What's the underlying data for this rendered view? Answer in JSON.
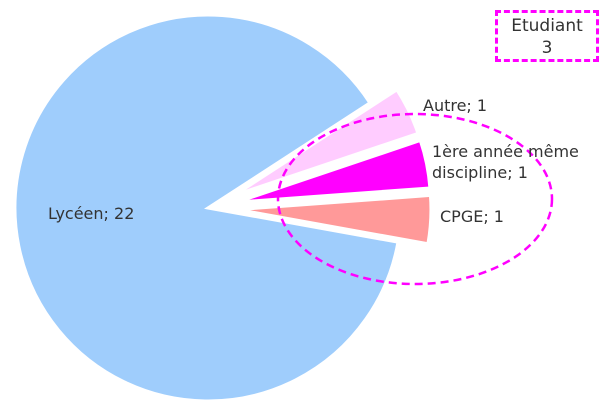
{
  "chart_data": {
    "type": "pie",
    "categories": [
      "Lycéen",
      "Autre",
      "1ère année même discipline",
      "CPGE"
    ],
    "values": [
      22,
      1,
      1,
      1
    ],
    "value_labels": [
      "Lycéen; 22",
      "Autre; 1",
      "1ère année même discipline; 1",
      "CPGE; 1"
    ],
    "colors": [
      "#9fcdfc",
      "#ffccff",
      "#ff00ff",
      "#ff9999"
    ],
    "annotations": [
      {
        "label": "Etudiant",
        "value": 3
      }
    ]
  }
}
